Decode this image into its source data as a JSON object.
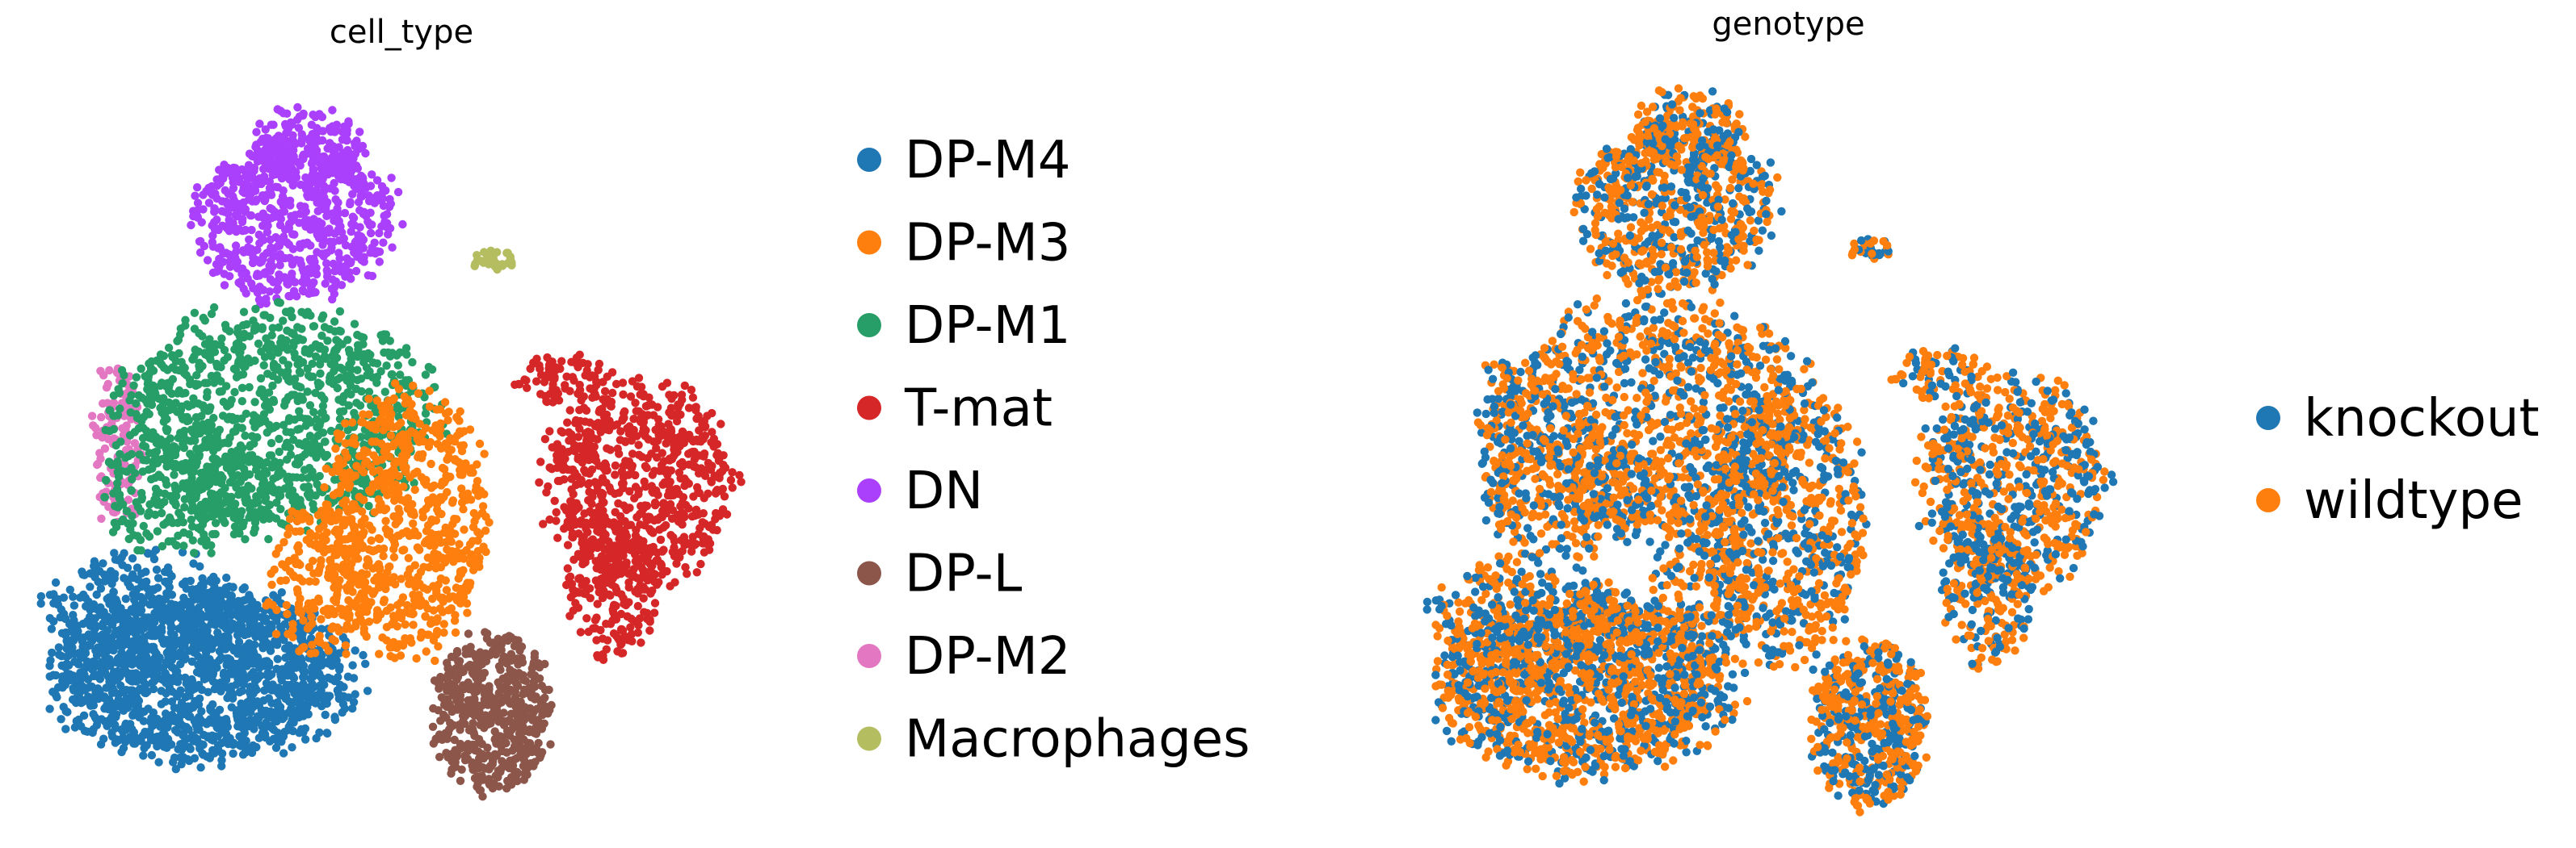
{
  "chart_data": [
    {
      "type": "scatter",
      "title": "cell_type",
      "xlabel": "",
      "ylabel": "",
      "grid": false,
      "axes_visible": false,
      "legend_position": "right",
      "categories": [
        {
          "name": "DP-M4",
          "color": "#1f77b4"
        },
        {
          "name": "DP-M3",
          "color": "#ff7f0e"
        },
        {
          "name": "DP-M1",
          "color": "#279e68"
        },
        {
          "name": "T-mat",
          "color": "#d62728"
        },
        {
          "name": "DN",
          "color": "#aa40fc"
        },
        {
          "name": "DP-L",
          "color": "#8c564b"
        },
        {
          "name": "DP-M2",
          "color": "#e377c2"
        },
        {
          "name": "Macrophages",
          "color": "#b5bd61"
        }
      ],
      "draw_order": [
        "DP-M4",
        "DN",
        "DP-M2",
        "DP-M1",
        "DP-M3",
        "T-mat",
        "DP-L",
        "Macrophages"
      ]
    },
    {
      "type": "scatter",
      "title": "genotype",
      "xlabel": "",
      "ylabel": "",
      "grid": false,
      "axes_visible": false,
      "legend_position": "right",
      "categories": [
        {
          "name": "knockout",
          "color": "#1f77b4"
        },
        {
          "name": "wildtype",
          "color": "#ff7f0e"
        }
      ],
      "mixed_display": true
    }
  ]
}
